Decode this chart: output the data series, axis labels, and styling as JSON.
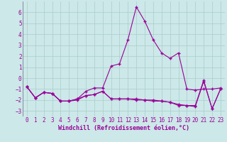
{
  "xlabel": "Windchill (Refroidissement éolien,°C)",
  "background_color": "#cce8e8",
  "grid_color": "#aacccc",
  "line_color": "#990099",
  "x": [
    0,
    1,
    2,
    3,
    4,
    5,
    6,
    7,
    8,
    9,
    10,
    11,
    12,
    13,
    14,
    15,
    16,
    17,
    18,
    19,
    20,
    21,
    22,
    23
  ],
  "line1": [
    -0.8,
    -1.8,
    -1.3,
    -1.4,
    -2.1,
    -2.1,
    -1.9,
    -1.2,
    -0.9,
    -0.9,
    1.1,
    1.3,
    3.5,
    6.5,
    5.2,
    3.5,
    2.3,
    1.8,
    2.3,
    -1.0,
    -1.1,
    -1.0,
    -1.0,
    -0.9
  ],
  "line2": [
    -0.8,
    -1.8,
    -1.3,
    -1.4,
    -2.1,
    -2.1,
    -1.9,
    -1.6,
    -1.5,
    -1.2,
    -1.9,
    -1.9,
    -1.9,
    -1.9,
    -2.0,
    -2.0,
    -2.1,
    -2.2,
    -2.5,
    -2.5,
    -2.6,
    -0.3,
    -2.8,
    -1.0
  ],
  "line3": [
    -0.8,
    -1.8,
    -1.3,
    -1.4,
    -2.1,
    -2.1,
    -2.0,
    -1.6,
    -1.5,
    -1.2,
    -1.9,
    -1.9,
    -1.9,
    -2.0,
    -2.0,
    -2.1,
    -2.1,
    -2.2,
    -2.4,
    -2.5,
    -2.5,
    -0.2,
    -2.8,
    -1.0
  ],
  "ylim": [
    -3.5,
    7.0
  ],
  "xlim": [
    -0.5,
    23.5
  ],
  "yticks": [
    -3,
    -2,
    -1,
    0,
    1,
    2,
    3,
    4,
    5,
    6
  ],
  "xticks": [
    0,
    1,
    2,
    3,
    4,
    5,
    6,
    7,
    8,
    9,
    10,
    11,
    12,
    13,
    14,
    15,
    16,
    17,
    18,
    19,
    20,
    21,
    22,
    23
  ],
  "tick_fontsize": 5.5,
  "xlabel_fontsize": 6.0,
  "marker": "+",
  "markersize": 3,
  "linewidth": 0.8
}
